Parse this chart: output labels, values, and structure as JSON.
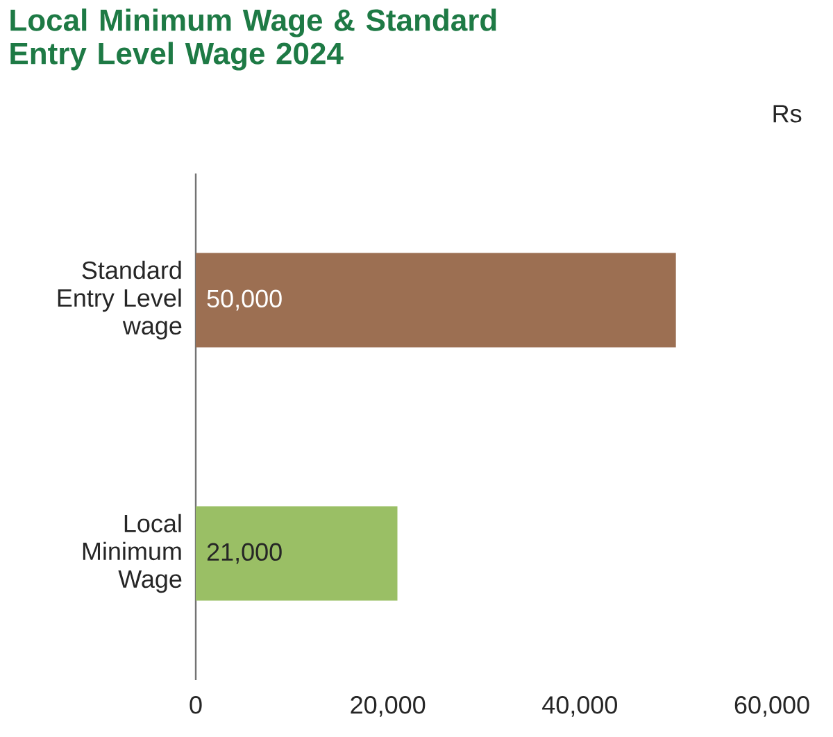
{
  "chart_data": {
    "type": "bar",
    "orientation": "horizontal",
    "title": "Local Minimum Wage & Standard Entry Level Wage 2024",
    "annotations": [
      "Rs"
    ],
    "categories": [
      "Standard Entry Level wage",
      "Local Minimum Wage"
    ],
    "values": [
      50000,
      21000
    ],
    "colors": [
      "#9c6f52",
      "#9abf65"
    ],
    "value_labels": [
      "50,000",
      "21,000"
    ],
    "xlim": [
      0,
      60000
    ],
    "xticks": [
      {
        "value": 0,
        "label": "0"
      },
      {
        "value": 20000,
        "label": "20,000"
      },
      {
        "value": 40000,
        "label": "40,000"
      },
      {
        "value": 60000,
        "label": "60,000"
      }
    ],
    "grid": false
  }
}
